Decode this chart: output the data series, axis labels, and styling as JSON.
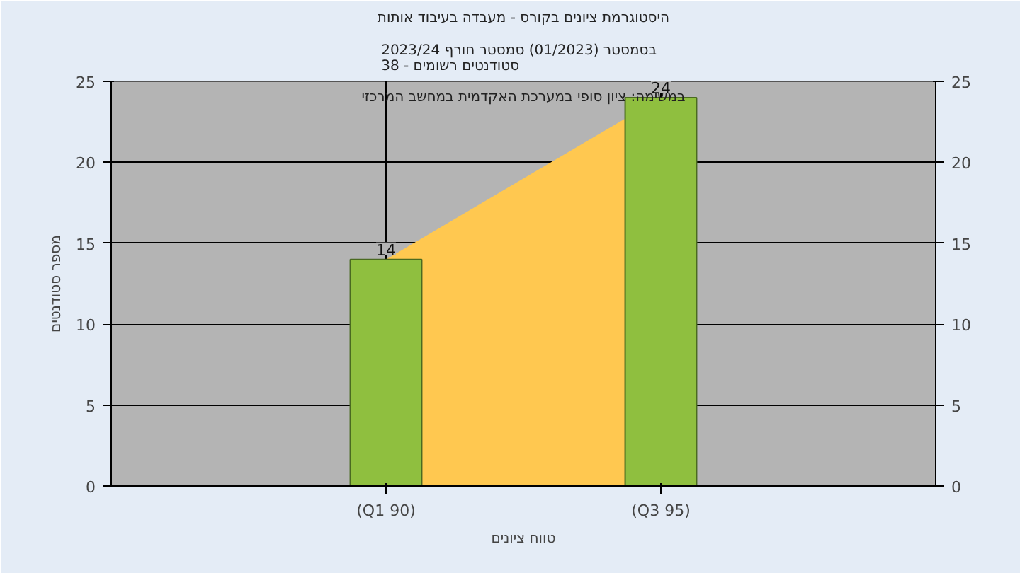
{
  "chart_data": {
    "type": "bar",
    "title": "היסטוגרמת ציונים בקורס - מעבדה בעיבוד אותות",
    "subtitle": "בסמסטר  (01/2023)  סמסטר חורף 2023/24\nסטודנטים רשומים - 38",
    "xlabel": "טווח ציונים",
    "ylabel": "מספר סטודנטים",
    "annotations": [
      "במשימה: ציון סופי במערכת האקדמית במחשב המרכזי"
    ],
    "categories": [
      "(Q1 90)",
      "(Q3 95)"
    ],
    "series": [
      {
        "type": "area",
        "color": "#ffc850",
        "values": [
          14,
          24
        ]
      },
      {
        "color": "#8fbf3f",
        "values": [
          14,
          24
        ],
        "value_labels": [
          "14",
          "24"
        ]
      }
    ],
    "ylim": [
      0,
      25
    ],
    "yticks": [
      0,
      5,
      10,
      15,
      20,
      25
    ],
    "y2lim": [
      0,
      25
    ],
    "y2ticks": [
      0,
      5,
      10,
      15,
      20,
      25
    ],
    "grid": true
  }
}
